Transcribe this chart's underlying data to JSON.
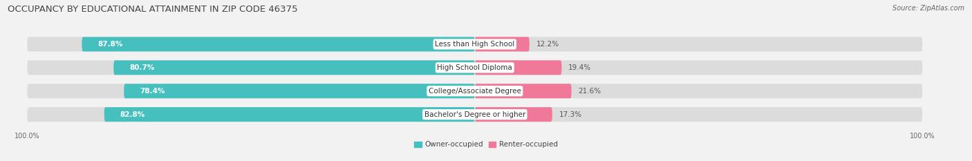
{
  "title": "OCCUPANCY BY EDUCATIONAL ATTAINMENT IN ZIP CODE 46375",
  "source": "Source: ZipAtlas.com",
  "categories": [
    "Less than High School",
    "High School Diploma",
    "College/Associate Degree",
    "Bachelor's Degree or higher"
  ],
  "owner_pct": [
    87.8,
    80.7,
    78.4,
    82.8
  ],
  "renter_pct": [
    12.2,
    19.4,
    21.6,
    17.3
  ],
  "owner_color": "#46BFBF",
  "renter_color": "#F07898",
  "bg_color": "#f2f2f2",
  "bar_bg_color": "#dcdcdc",
  "bar_height": 0.62,
  "title_fontsize": 9.5,
  "label_fontsize": 7.5,
  "pct_fontsize": 7.5,
  "tick_fontsize": 7,
  "legend_fontsize": 7.5,
  "source_fontsize": 7
}
